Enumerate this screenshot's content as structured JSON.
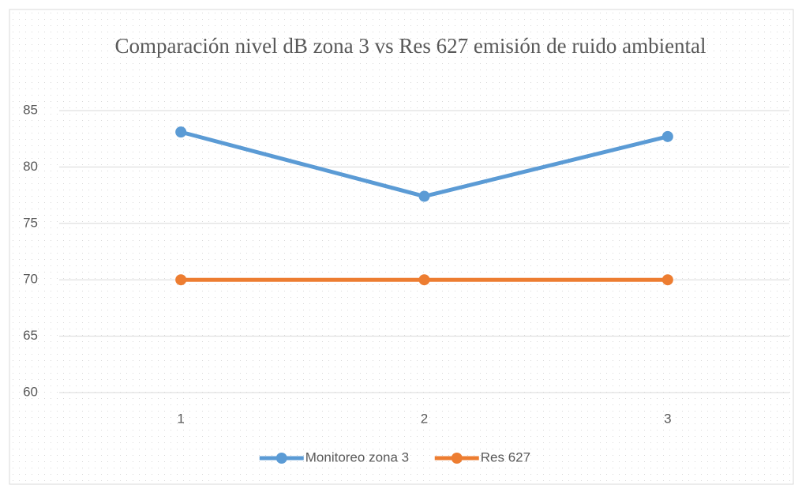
{
  "chart_data": {
    "type": "line",
    "title": "Comparación nivel dB zona 3 vs Res 627 emisión de ruido ambiental",
    "categories": [
      "1",
      "2",
      "3"
    ],
    "series": [
      {
        "name": "Monitoreo zona 3",
        "color": "#5b9bd5",
        "values": [
          83.1,
          77.4,
          82.7
        ]
      },
      {
        "name": "Res 627",
        "color": "#ed7d31",
        "values": [
          70,
          70,
          70
        ]
      }
    ],
    "ylim": [
      60,
      85
    ],
    "yticks": [
      60,
      65,
      70,
      75,
      80,
      85
    ],
    "grid": true,
    "legend": "bottom"
  }
}
